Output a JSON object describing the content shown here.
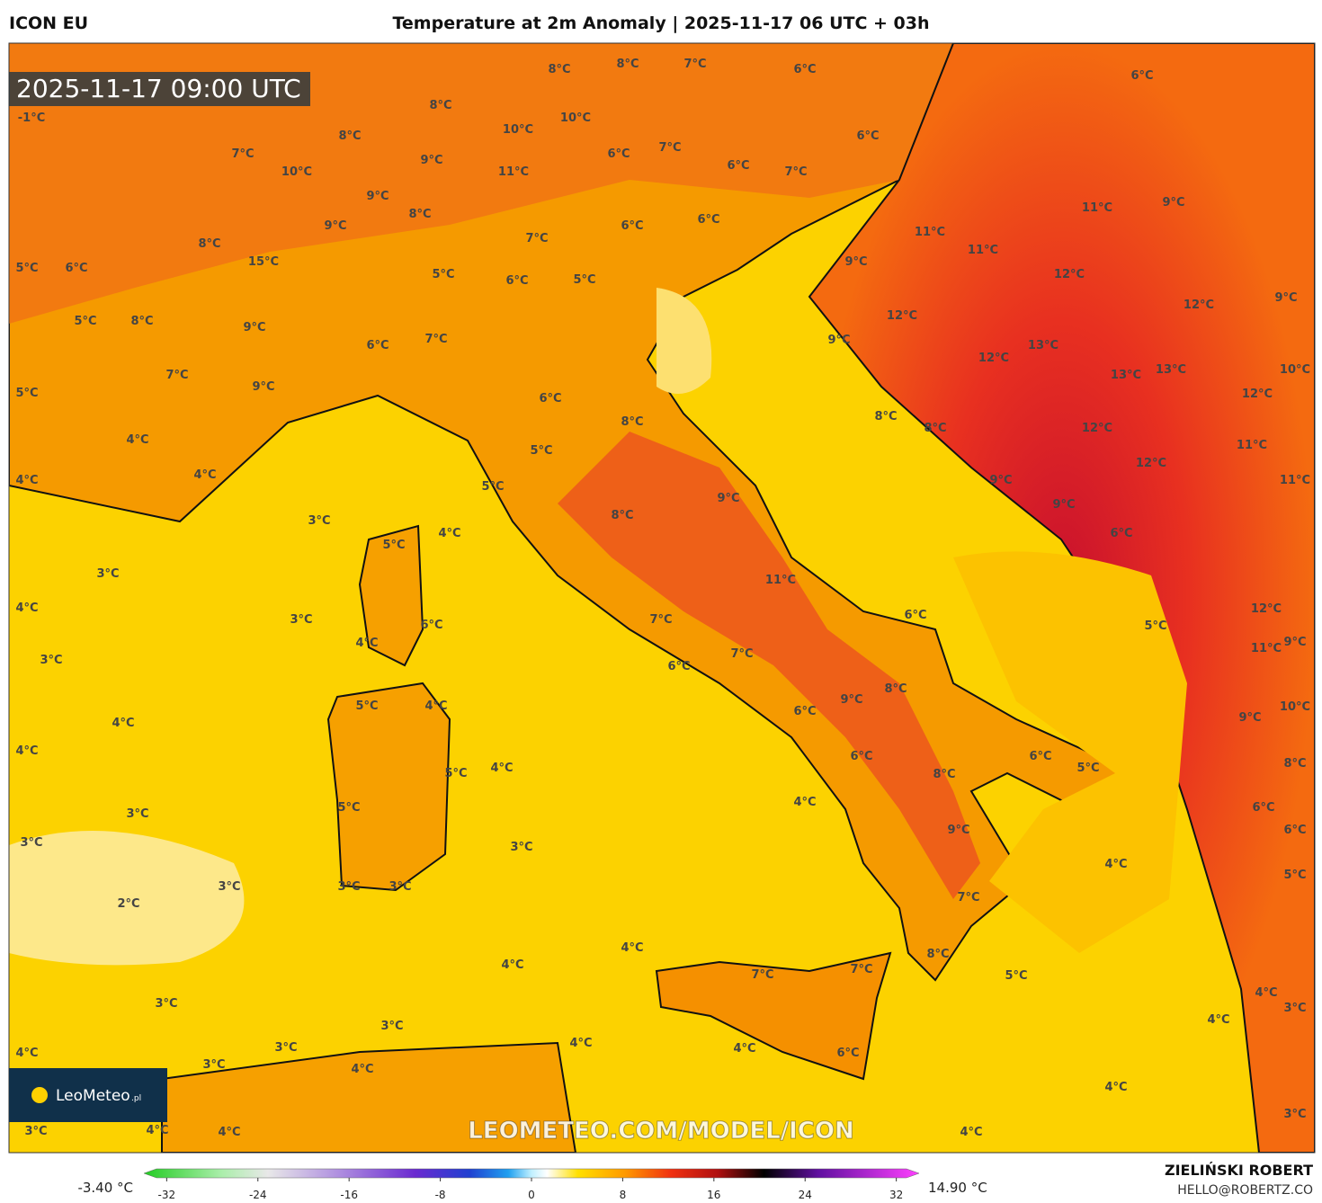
{
  "header": {
    "model": "ICON EU",
    "title": "Temperature at 2m Anomaly | 2025-11-17 06 UTC + 03h"
  },
  "timestamp": "2025-11-17 09:00 UTC",
  "map": {
    "labels": [
      "-1°C",
      "5°C",
      "6°C",
      "5°C",
      "8°C",
      "7°C",
      "5°C",
      "4°C",
      "4°C",
      "4°C",
      "3°C",
      "3°C",
      "4°C",
      "3°C",
      "3°C",
      "4°C",
      "4°C",
      "3°C",
      "3°C",
      "2°C",
      "3°C",
      "3°C",
      "4°C",
      "3°C",
      "4°C",
      "4°C",
      "3°C",
      "3°C",
      "4°C",
      "3°C",
      "4°C",
      "3°C",
      "4°C",
      "4°C",
      "5°C",
      "5°C",
      "5°C",
      "6°C",
      "8°C",
      "8°C",
      "9°C",
      "11°C",
      "7°C",
      "6°C",
      "7°C",
      "6°C",
      "6°C",
      "9°C",
      "8°C",
      "6°C",
      "8°C",
      "9°C",
      "7°C",
      "8°C",
      "4°C",
      "4°C",
      "7°C",
      "7°C",
      "6°C",
      "4°C",
      "4°C",
      "4°C",
      "4°C",
      "5°C",
      "4°C",
      "5°C",
      "6°C",
      "5°C",
      "6°C",
      "9°C",
      "9°C",
      "8°C",
      "8°C",
      "9°C",
      "9°C",
      "11°C",
      "11°C",
      "11°C",
      "9°C",
      "12°C",
      "12°C",
      "9°C",
      "12°C",
      "13°C",
      "12°C",
      "13°C",
      "13°C",
      "12°C",
      "10°C",
      "11°C",
      "12°C",
      "12°C",
      "11°C",
      "12°C",
      "11°C",
      "9°C",
      "10°C",
      "9°C",
      "8°C",
      "6°C",
      "6°C",
      "5°C",
      "4°C",
      "4°C",
      "3°C",
      "3°C",
      "6°C",
      "8°C",
      "8°C",
      "7°C",
      "6°C",
      "8°C",
      "10°C",
      "10°C",
      "6°C",
      "8°C",
      "7°C",
      "6°C",
      "6°C",
      "7°C",
      "7°C",
      "9°C",
      "10°C",
      "11°C",
      "9°C",
      "8°C",
      "9°C",
      "6°C",
      "6°C",
      "7°C",
      "8°C",
      "15°C",
      "5°C",
      "6°C",
      "5°C",
      "9°C",
      "6°C",
      "7°C",
      "9°C",
      "5°C",
      "4°C",
      "5°C",
      "5°C",
      "3°C",
      "3°C",
      "6°C",
      "4°C"
    ]
  },
  "watermark": "LEOMETEO.COM/MODEL/ICON",
  "logo": {
    "name": "LeoMeteo",
    "suffix": ".pl"
  },
  "colorbar": {
    "min_label": "-3.40 °C",
    "max_label": "14.90 °C",
    "lim": [
      -34,
      34
    ],
    "ticks": [
      -32,
      -24,
      -16,
      -8,
      0,
      8,
      16,
      24,
      32
    ]
  },
  "credit": {
    "author": "ZIELIŃSKI ROBERT",
    "email": "HELLO@ROBERTZ.CO"
  }
}
